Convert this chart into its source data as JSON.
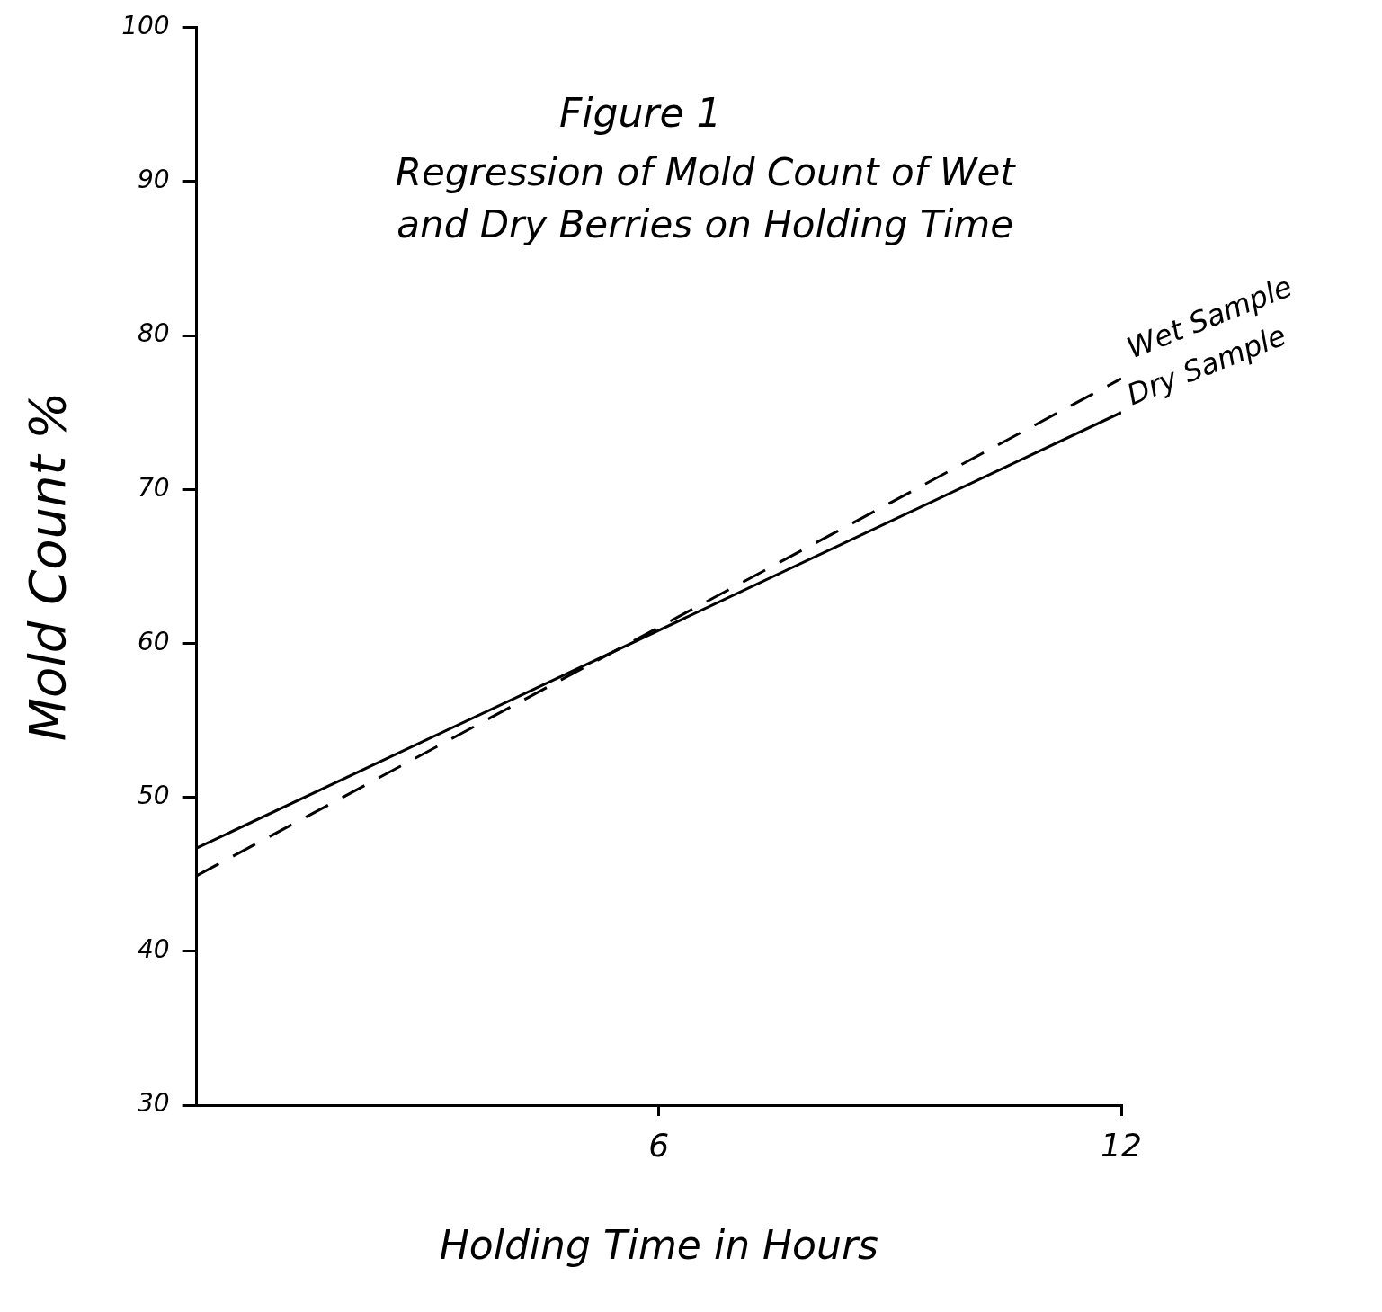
{
  "chart_data": {
    "type": "line",
    "title": "Figure 1",
    "subtitle": "Regression of Mold Count of Wet and Dry Berries on Holding Time",
    "xlabel": "Holding Time in Hours",
    "ylabel": "Mold Count %",
    "x": [
      0,
      12
    ],
    "series": [
      {
        "name": "Wet Sample",
        "color": "#000000",
        "values": [
          44.9,
          77.2
        ],
        "line_style": "dashed"
      },
      {
        "name": "Dry Sample",
        "color": "#000000",
        "values": [
          46.7,
          75.0
        ],
        "line_style": "solid"
      }
    ],
    "xlim": [
      0,
      12
    ],
    "xticks": [
      6,
      12
    ],
    "ylim": [
      30,
      100
    ],
    "yticks": [
      30,
      40,
      50,
      60,
      70,
      80,
      90,
      100
    ],
    "grid": false,
    "legend": false,
    "marker": "none"
  }
}
